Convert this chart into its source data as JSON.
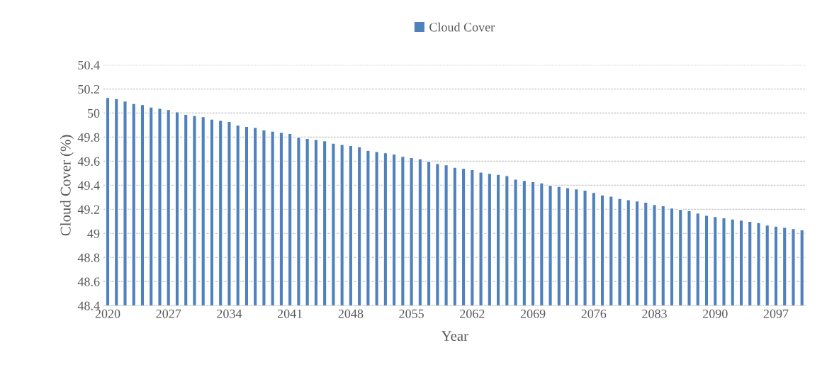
{
  "chart_data": {
    "type": "bar",
    "xlabel": "Year",
    "ylabel": "Cloud Cover (%)",
    "categories": [
      "2020",
      null,
      null,
      null,
      null,
      null,
      null,
      "2027",
      null,
      null,
      null,
      null,
      null,
      null,
      "2034",
      null,
      null,
      null,
      null,
      null,
      null,
      "2041",
      null,
      null,
      null,
      null,
      null,
      null,
      "2048",
      null,
      null,
      null,
      null,
      null,
      null,
      "2055",
      null,
      null,
      null,
      null,
      null,
      null,
      "2062",
      null,
      null,
      null,
      null,
      null,
      null,
      "2069",
      null,
      null,
      null,
      null,
      null,
      null,
      "2076",
      null,
      null,
      null,
      null,
      null,
      null,
      "2083",
      null,
      null,
      null,
      null,
      null,
      null,
      "2090",
      null,
      null,
      null,
      null,
      null,
      null,
      "2097",
      null,
      null,
      null
    ],
    "series": [
      {
        "name": "Cloud Cover",
        "color": "#4f81bd",
        "values": [
          50.13,
          50.12,
          50.1,
          50.08,
          50.07,
          50.05,
          50.04,
          50.03,
          50.01,
          49.99,
          49.98,
          49.97,
          49.95,
          49.94,
          49.93,
          49.9,
          49.89,
          49.88,
          49.86,
          49.85,
          49.84,
          49.83,
          49.8,
          49.79,
          49.78,
          49.77,
          49.75,
          49.74,
          49.73,
          49.72,
          49.69,
          49.68,
          49.67,
          49.66,
          49.64,
          49.63,
          49.62,
          49.6,
          49.58,
          49.57,
          49.55,
          49.54,
          49.53,
          49.51,
          49.5,
          49.49,
          49.48,
          49.45,
          49.44,
          49.43,
          49.42,
          49.4,
          49.39,
          49.38,
          49.37,
          49.36,
          49.34,
          49.32,
          49.31,
          49.29,
          49.28,
          49.27,
          49.26,
          49.24,
          49.23,
          49.21,
          49.2,
          49.19,
          49.17,
          49.15,
          49.14,
          49.13,
          49.12,
          49.11,
          49.1,
          49.09,
          49.07,
          49.06,
          49.05,
          49.04,
          49.03
        ]
      }
    ],
    "ylim": [
      48.4,
      50.4
    ],
    "yticks": [
      48.4,
      48.6,
      48.8,
      {
        "value": 49,
        "label": "49"
      },
      49.2,
      49.4,
      49.6,
      49.8,
      {
        "value": 50,
        "label": "50"
      },
      50.2,
      50.4
    ],
    "grid": "y",
    "legend": "top"
  }
}
